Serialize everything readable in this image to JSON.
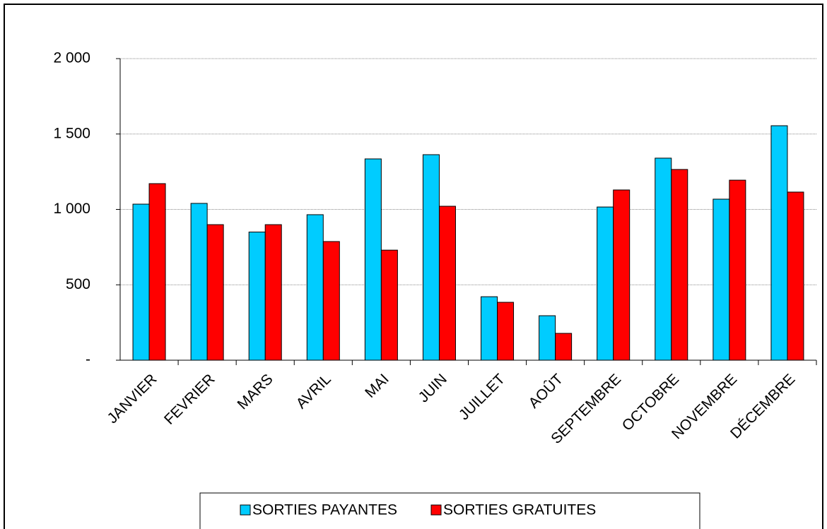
{
  "chart_data": {
    "type": "bar",
    "categories": [
      "JANVIER",
      "FEVRIER",
      "MARS",
      "AVRIL",
      "MAI",
      "JUIN",
      "JUILLET",
      "AOÛT",
      "SEPTEMBRE",
      "OCTOBRE",
      "NOVEMBRE",
      "DÉCEMBRE"
    ],
    "series": [
      {
        "name": "SORTIES PAYANTES",
        "color": "#00ccff",
        "values": [
          1035,
          1040,
          850,
          965,
          1335,
          1363,
          421,
          295,
          1016,
          1340,
          1068,
          1555
        ]
      },
      {
        "name": "SORTIES GRATUITES",
        "color": "#ff0000",
        "values": [
          1171,
          899,
          899,
          787,
          730,
          1021,
          384,
          178,
          1129,
          1265,
          1194,
          1115
        ]
      }
    ],
    "ylim": [
      0,
      2000
    ],
    "yticks": [
      {
        "value": 0,
        "label": "-"
      },
      500,
      {
        "value": 1000,
        "label": "1 000"
      },
      {
        "value": 1500,
        "label": "1 500"
      },
      {
        "value": 2000,
        "label": "2 000"
      }
    ],
    "grid": true,
    "legend": "bottom"
  }
}
